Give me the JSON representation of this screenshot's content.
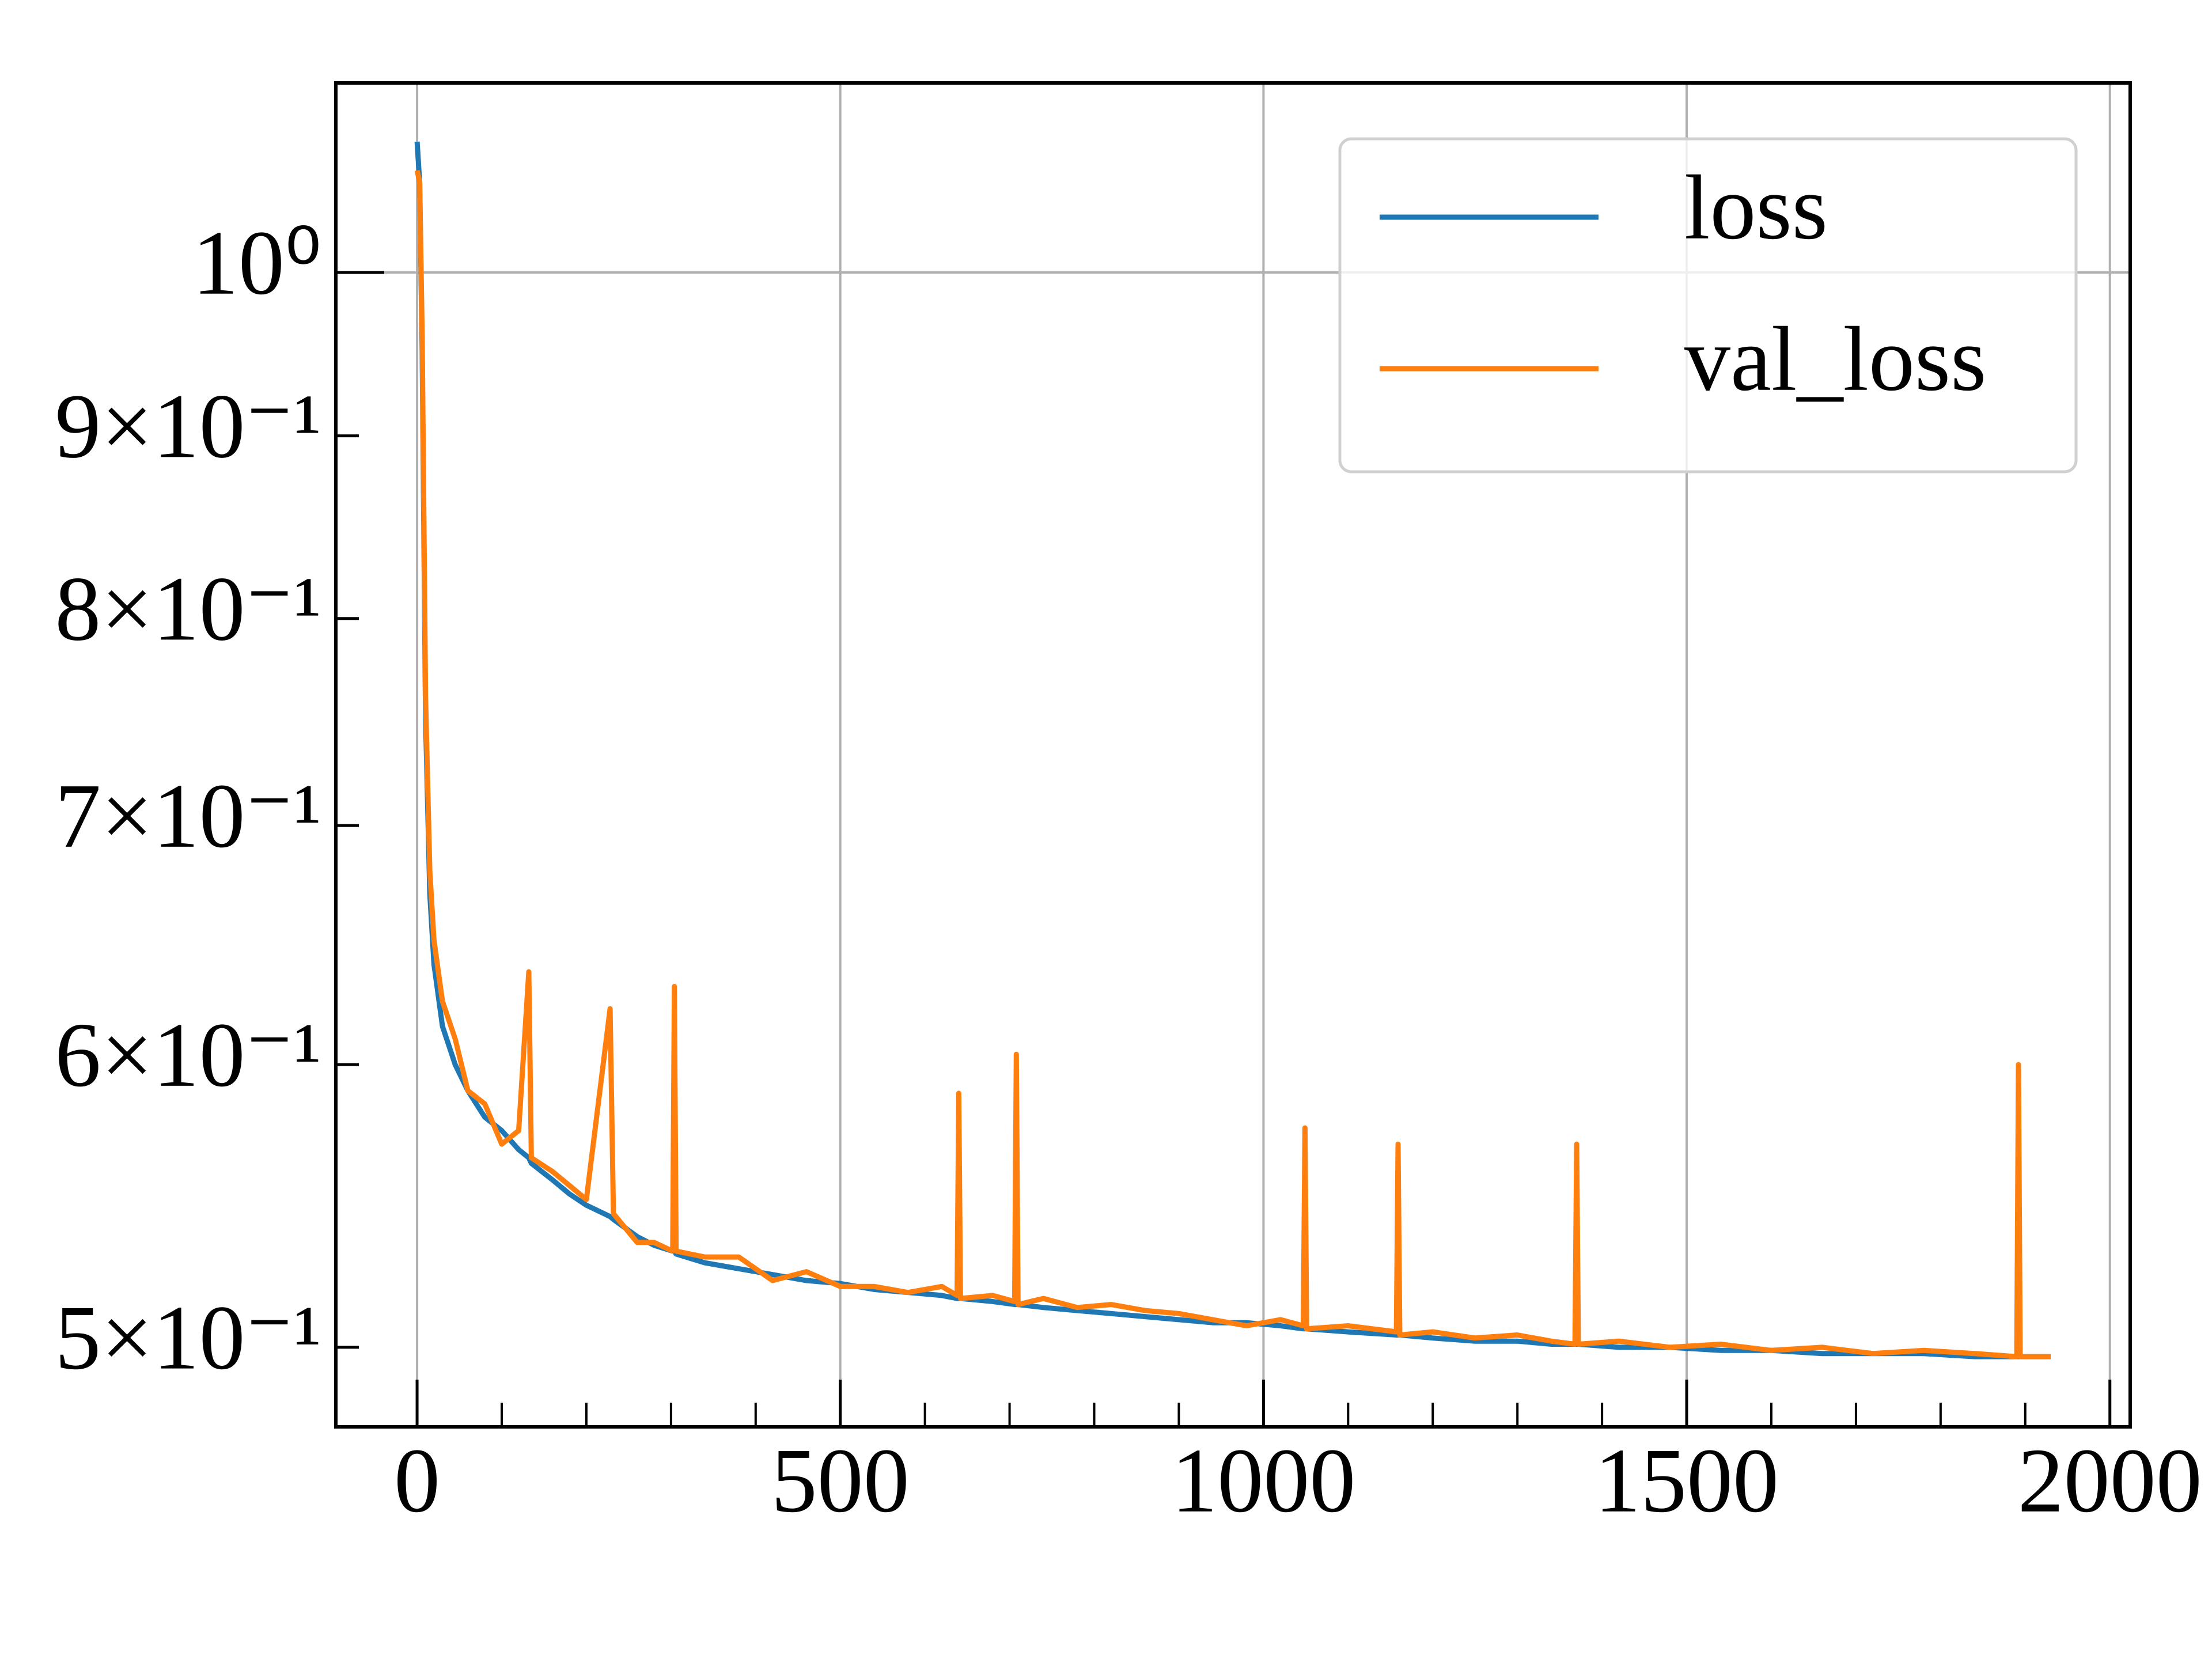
{
  "chart_data": {
    "type": "line",
    "x": [
      0,
      3,
      6,
      10,
      15,
      20,
      30,
      45,
      60,
      80,
      100,
      120,
      132,
      135,
      160,
      180,
      200,
      228,
      232,
      260,
      280,
      302,
      304,
      306,
      340,
      380,
      420,
      460,
      500,
      540,
      580,
      620,
      638,
      640,
      642,
      680,
      706,
      708,
      710,
      740,
      780,
      820,
      860,
      900,
      940,
      980,
      1020,
      1047,
      1049,
      1051,
      1100,
      1157,
      1159,
      1161,
      1200,
      1250,
      1300,
      1340,
      1368,
      1370,
      1372,
      1420,
      1480,
      1540,
      1600,
      1660,
      1720,
      1780,
      1840,
      1890,
      1892,
      1894,
      1930
    ],
    "series": [
      {
        "name": "loss",
        "color": "#1f77b4",
        "values": [
          1.088,
          1.06,
          0.95,
          0.75,
          0.67,
          0.64,
          0.615,
          0.6,
          0.59,
          0.58,
          0.575,
          0.568,
          0.565,
          0.563,
          0.557,
          0.552,
          0.548,
          0.544,
          0.543,
          0.537,
          0.534,
          0.532,
          0.532,
          0.531,
          0.528,
          0.526,
          0.524,
          0.522,
          0.521,
          0.519,
          0.518,
          0.517,
          0.516,
          0.516,
          0.516,
          0.515,
          0.514,
          0.514,
          0.514,
          0.513,
          0.512,
          0.511,
          0.51,
          0.509,
          0.508,
          0.508,
          0.507,
          0.506,
          0.506,
          0.506,
          0.505,
          0.504,
          0.504,
          0.504,
          0.503,
          0.502,
          0.502,
          0.501,
          0.501,
          0.501,
          0.501,
          0.5,
          0.5,
          0.499,
          0.499,
          0.498,
          0.498,
          0.498,
          0.497,
          0.497,
          0.497,
          0.497,
          0.497
        ]
      },
      {
        "name": "val_loss",
        "color": "#ff7f0e",
        "values": [
          1.068,
          1.06,
          0.96,
          0.76,
          0.68,
          0.65,
          0.625,
          0.61,
          0.59,
          0.585,
          0.57,
          0.575,
          0.637,
          0.565,
          0.56,
          0.555,
          0.55,
          0.622,
          0.545,
          0.535,
          0.535,
          0.532,
          0.631,
          0.532,
          0.53,
          0.53,
          0.522,
          0.525,
          0.52,
          0.52,
          0.518,
          0.52,
          0.517,
          0.589,
          0.516,
          0.517,
          0.515,
          0.604,
          0.514,
          0.516,
          0.513,
          0.514,
          0.512,
          0.511,
          0.509,
          0.507,
          0.509,
          0.507,
          0.576,
          0.506,
          0.507,
          0.505,
          0.57,
          0.504,
          0.505,
          0.503,
          0.504,
          0.502,
          0.501,
          0.57,
          0.501,
          0.502,
          0.5,
          0.501,
          0.499,
          0.5,
          0.498,
          0.499,
          0.498,
          0.497,
          0.6,
          0.497,
          0.497
        ]
      }
    ],
    "xlim": [
      -96,
      2024
    ],
    "xticks": [
      0,
      500,
      1000,
      1500,
      2000
    ],
    "xminorticks": [
      100,
      200,
      300,
      400,
      600,
      700,
      800,
      900,
      1100,
      1200,
      1300,
      1400,
      1600,
      1700,
      1800,
      1900
    ],
    "ylim": [
      0.475,
      1.13
    ],
    "log_y": true,
    "yticks": [
      {
        "value": 1,
        "label": "10⁰"
      }
    ],
    "yminorticks": [
      {
        "value": 0.5,
        "label": "5×10⁻¹"
      },
      {
        "value": 0.6,
        "label": "6×10⁻¹"
      },
      {
        "value": 0.7,
        "label": "7×10⁻¹"
      },
      {
        "value": 0.8,
        "label": "8×10⁻¹"
      },
      {
        "value": 0.9,
        "label": "9×10⁻¹"
      }
    ],
    "grid": true,
    "legend": "upper right"
  }
}
